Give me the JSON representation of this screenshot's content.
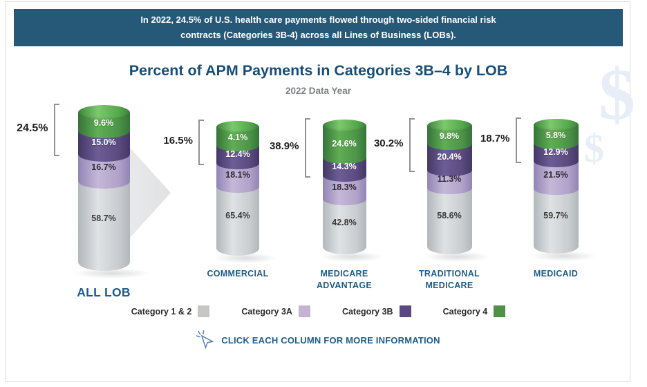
{
  "banner": {
    "line1": "In 2022, 24.5% of U.S. health care payments flowed through two-sided financial risk",
    "line2": "contracts (Categories 3B-4) across all Lines of Business (LOBs).",
    "bg_color": "#265878"
  },
  "title": "Percent of APM Payments in Categories 3B–4 by LOB",
  "subtitle": "2022 Data Year",
  "chart_data": {
    "type": "bar",
    "stacked": true,
    "units": "%",
    "ylim": [
      0,
      100
    ],
    "legend_position": "bottom",
    "categories": [
      "ALL LOB",
      "COMMERCIAL",
      "MEDICARE ADVANTAGE",
      "TRADITIONAL MEDICARE",
      "MEDICAID"
    ],
    "category_name_lines": [
      [
        "ALL LOB"
      ],
      [
        "COMMERCIAL"
      ],
      [
        "MEDICARE",
        "ADVANTAGE"
      ],
      [
        "TRADITIONAL",
        "MEDICARE"
      ],
      [
        "MEDICAID"
      ]
    ],
    "series": [
      {
        "name": "Category 1 & 2",
        "color": "#c6c7c5",
        "values": [
          58.7,
          65.4,
          42.8,
          58.6,
          59.7
        ]
      },
      {
        "name": "Category 3A",
        "color": "#c3b4d4",
        "values": [
          16.7,
          18.1,
          18.3,
          11.3,
          21.5
        ]
      },
      {
        "name": "Category 3B",
        "color": "#5a4880",
        "values": [
          15.0,
          12.4,
          14.3,
          20.4,
          12.9
        ]
      },
      {
        "name": "Category 4",
        "color": "#4d9046",
        "values": [
          9.6,
          4.1,
          24.6,
          9.8,
          5.8
        ]
      }
    ],
    "bracket_totals": {
      "description": "Categories 3B–4 combined (two-sided risk)",
      "values": [
        24.5,
        16.5,
        38.9,
        30.2,
        18.7
      ]
    }
  },
  "legend_items": [
    "Category 1 & 2",
    "Category 3A",
    "Category 3B",
    "Category 4"
  ],
  "footer_note": "CLICK EACH COLUMN FOR MORE INFORMATION",
  "watermark": {
    "symbol": "$",
    "color": "#e7eef7"
  }
}
